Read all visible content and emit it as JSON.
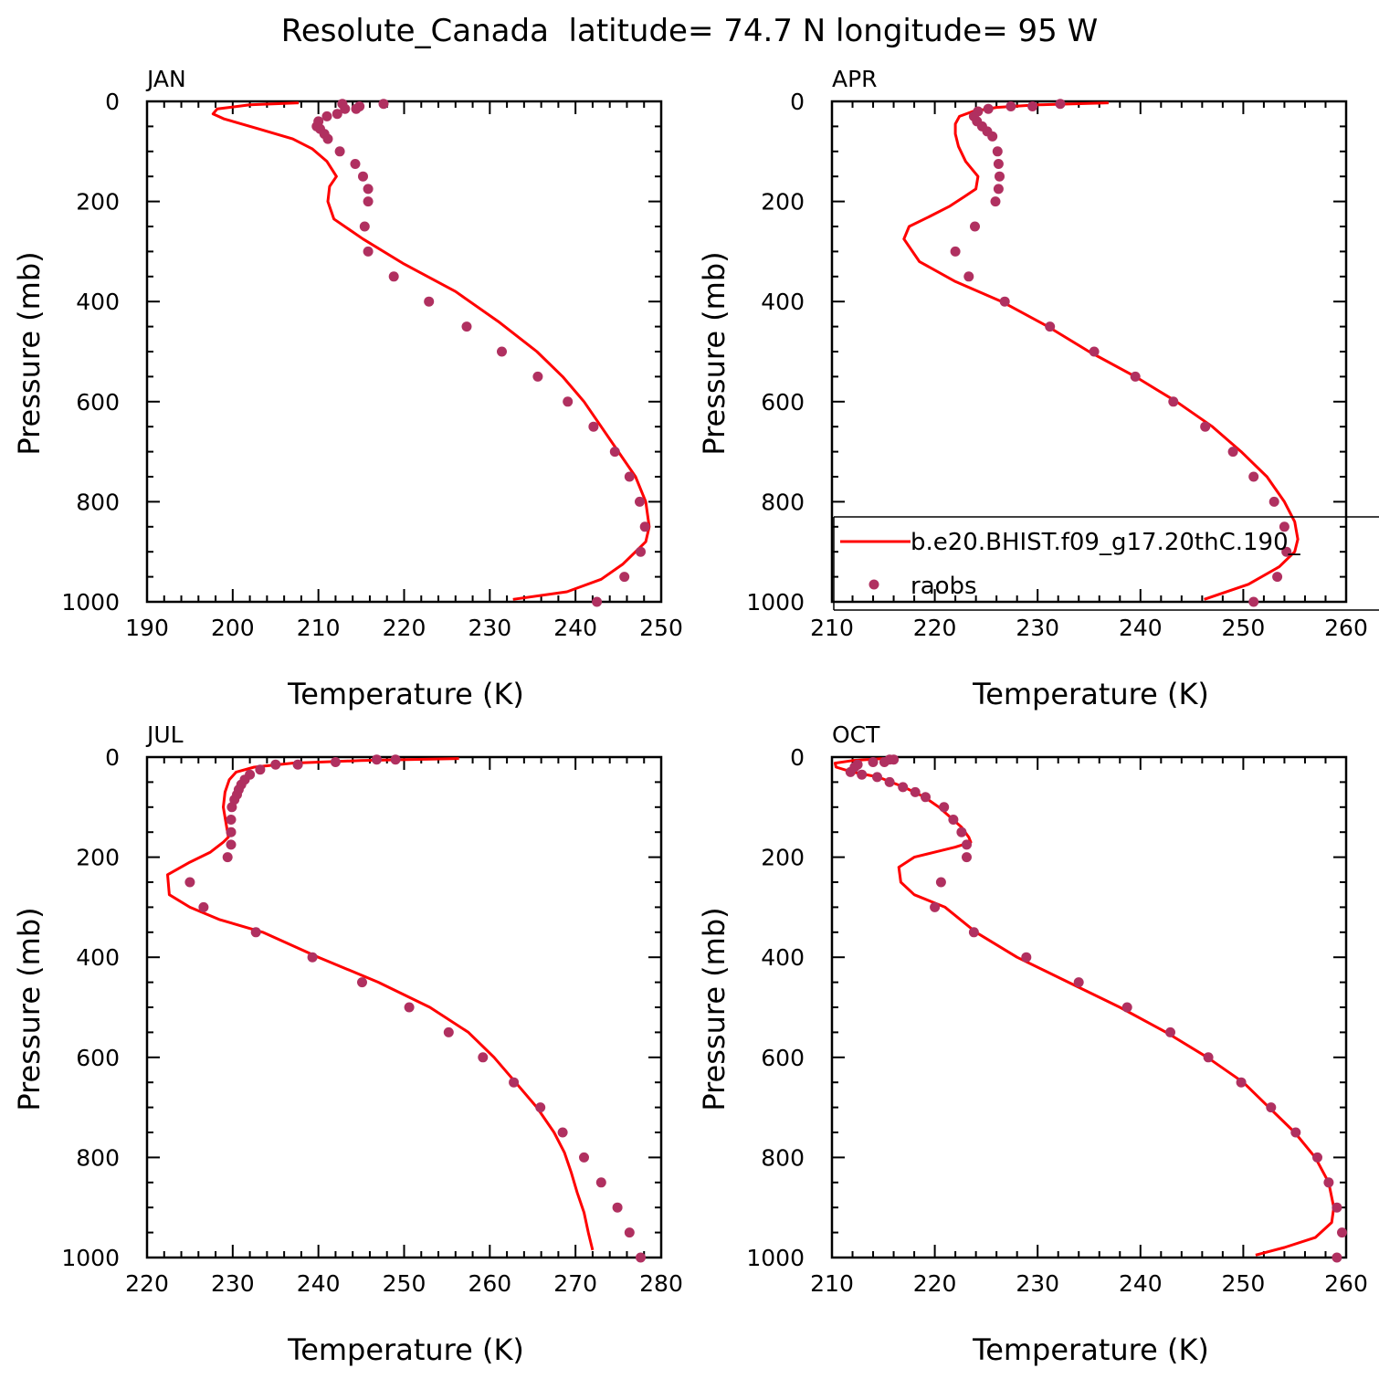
{
  "figure": {
    "title": "Resolute_Canada  latitude= 74.7 N longitude= 95 W"
  },
  "legend": {
    "entries": [
      {
        "name": "b.e20.BHIST.f09_g17.20thC.190_",
        "style": "line",
        "color": "#ff0000"
      },
      {
        "name": "raobs",
        "style": "marker",
        "color": "#b03060"
      }
    ]
  },
  "chart_data": [
    {
      "type": "line",
      "panel_label": "JAN",
      "xlabel": "Temperature (K)",
      "ylabel": "Pressure (mb)",
      "xlim": [
        190,
        250
      ],
      "ylim": [
        1000,
        0
      ],
      "y_inverted": true,
      "xticks": [
        190,
        200,
        210,
        220,
        230,
        240,
        250
      ],
      "yticks": [
        0,
        200,
        400,
        600,
        800,
        1000
      ],
      "series": [
        {
          "name": "b.e20.BHIST.f09_g17.20thC.190_",
          "kind": "line",
          "color": "#ff0000",
          "x": [
            207.7,
            202,
            198.2,
            197.7,
            199,
            203,
            207,
            209.3,
            211,
            212.1,
            211.3,
            211.1,
            211.8,
            215.2,
            220,
            226,
            231,
            235.5,
            238.5,
            241,
            243,
            245,
            247,
            248.2,
            248.6,
            248.2,
            247,
            245.5,
            243,
            239,
            232.7
          ],
          "y": [
            3,
            7,
            15,
            25,
            35,
            55,
            75,
            95,
            120,
            150,
            170,
            200,
            235,
            275,
            325,
            380,
            440,
            500,
            550,
            600,
            650,
            700,
            750,
            800,
            850,
            880,
            900,
            925,
            955,
            980,
            995
          ]
        },
        {
          "name": "raobs",
          "kind": "scatter",
          "color": "#b03060",
          "x": [
            217.6,
            214.8,
            212.8,
            214.4,
            213.1,
            212.2,
            211,
            210,
            209.8,
            210.2,
            210.7,
            211.1,
            212.5,
            214.3,
            215.2,
            215.8,
            215.8,
            215.4,
            215.8,
            218.8,
            222.9,
            227.3,
            231.4,
            235.6,
            239.1,
            242.1,
            244.6,
            246.3,
            247.5,
            248.1,
            247.6,
            245.7,
            242.5
          ],
          "y": [
            5,
            10,
            5,
            15,
            15,
            25,
            30,
            40,
            50,
            55,
            65,
            75,
            100,
            125,
            150,
            175,
            200,
            250,
            300,
            350,
            400,
            450,
            500,
            550,
            600,
            650,
            700,
            750,
            800,
            850,
            900,
            950,
            1000
          ]
        }
      ]
    },
    {
      "type": "line",
      "panel_label": "APR",
      "xlabel": "Temperature (K)",
      "ylabel": "Pressure (mb)",
      "xlim": [
        210,
        260
      ],
      "ylim": [
        1000,
        0
      ],
      "y_inverted": true,
      "xticks": [
        210,
        220,
        230,
        240,
        250,
        260
      ],
      "yticks": [
        0,
        200,
        400,
        600,
        800,
        1000
      ],
      "series": [
        {
          "name": "b.e20.BHIST.f09_g17.20thC.190_",
          "kind": "line",
          "color": "#ff0000",
          "x": [
            236.9,
            230,
            226,
            223.7,
            222.4,
            222,
            222,
            222.3,
            223,
            224.2,
            224,
            222.9,
            221.4,
            219.5,
            217.5,
            217,
            218.5,
            222,
            226.5,
            231,
            235,
            239.5,
            243.5,
            247,
            249.8,
            252.3,
            254,
            255,
            255.3,
            255,
            253.5,
            250.5,
            246.2
          ],
          "y": [
            3,
            7,
            12,
            20,
            30,
            45,
            65,
            90,
            120,
            150,
            175,
            190,
            210,
            230,
            250,
            275,
            320,
            360,
            400,
            450,
            500,
            550,
            600,
            650,
            700,
            750,
            800,
            840,
            875,
            900,
            930,
            965,
            995
          ]
        },
        {
          "name": "raobs",
          "kind": "scatter",
          "color": "#b03060",
          "x": [
            232.2,
            229.5,
            227.4,
            225.2,
            224.2,
            223.8,
            224.1,
            224.6,
            225.1,
            225.6,
            226.1,
            226.2,
            226.3,
            226.2,
            225.9,
            223.9,
            222,
            223.3,
            226.8,
            231.2,
            235.5,
            239.5,
            243.2,
            246.3,
            249,
            251,
            253,
            254,
            254.2,
            253.3,
            251
          ],
          "y": [
            5,
            10,
            10,
            15,
            20,
            30,
            40,
            50,
            60,
            70,
            100,
            125,
            150,
            175,
            200,
            250,
            300,
            350,
            400,
            450,
            500,
            550,
            600,
            650,
            700,
            750,
            800,
            850,
            900,
            950,
            1000
          ]
        }
      ]
    },
    {
      "type": "line",
      "panel_label": "JUL",
      "xlabel": "Temperature (K)",
      "ylabel": "Pressure (mb)",
      "xlim": [
        220,
        280
      ],
      "ylim": [
        1000,
        0
      ],
      "y_inverted": true,
      "xticks": [
        220,
        230,
        240,
        250,
        260,
        270,
        280
      ],
      "yticks": [
        0,
        200,
        400,
        600,
        800,
        1000
      ],
      "series": [
        {
          "name": "b.e20.BHIST.f09_g17.20thC.190_",
          "kind": "line",
          "color": "#ff0000",
          "x": [
            256.4,
            245,
            237,
            232.5,
            230.4,
            229.6,
            229.1,
            228.9,
            229.2,
            229.5,
            228.9,
            227.4,
            225,
            222.4,
            222.6,
            225,
            228.5,
            233.5,
            240,
            247,
            253,
            257.5,
            260.5,
            263,
            265.5,
            267.5,
            268.7,
            269.5,
            270.2,
            271,
            271.5,
            272
          ],
          "y": [
            3,
            7,
            12,
            20,
            30,
            45,
            70,
            100,
            130,
            160,
            170,
            190,
            210,
            235,
            275,
            300,
            325,
            350,
            400,
            450,
            500,
            550,
            600,
            650,
            700,
            750,
            790,
            830,
            870,
            910,
            950,
            985
          ]
        },
        {
          "name": "raobs",
          "kind": "scatter",
          "color": "#b03060",
          "x": [
            249,
            246.8,
            242,
            237.6,
            235,
            233.2,
            232,
            231.4,
            231,
            230.7,
            230.5,
            230.2,
            229.9,
            229.8,
            229.8,
            229.8,
            229.4,
            225,
            226.6,
            232.7,
            239.3,
            245.1,
            250.6,
            255.2,
            259.2,
            262.8,
            265.9,
            268.5,
            271,
            273,
            274.9,
            276.3,
            277.6
          ],
          "y": [
            5,
            5,
            10,
            15,
            15,
            25,
            35,
            45,
            55,
            65,
            75,
            85,
            100,
            125,
            150,
            175,
            200,
            250,
            300,
            350,
            400,
            450,
            500,
            550,
            600,
            650,
            700,
            750,
            800,
            850,
            900,
            950,
            1000
          ]
        }
      ]
    },
    {
      "type": "line",
      "panel_label": "OCT",
      "xlabel": "Temperature (K)",
      "ylabel": "Pressure (mb)",
      "xlim": [
        210,
        260
      ],
      "ylim": [
        1000,
        0
      ],
      "y_inverted": true,
      "xticks": [
        210,
        220,
        230,
        240,
        250,
        260
      ],
      "yticks": [
        0,
        200,
        400,
        600,
        800,
        1000
      ],
      "series": [
        {
          "name": "b.e20.BHIST.f09_g17.20thC.190_",
          "kind": "line",
          "color": "#ff0000",
          "x": [
            215,
            212,
            210.3,
            210.4,
            212,
            214.5,
            217,
            219,
            220.4,
            221.5,
            222.6,
            223.3,
            223.5,
            222,
            220,
            218,
            216.5,
            216.7,
            218,
            221,
            224,
            228,
            233,
            238,
            242.5,
            246.5,
            250,
            252.5,
            255,
            257,
            258.3,
            258.8,
            258.6,
            257,
            254,
            251.2
          ],
          "y": [
            3,
            7,
            12,
            20,
            30,
            40,
            60,
            80,
            100,
            120,
            140,
            160,
            170,
            180,
            190,
            200,
            220,
            250,
            275,
            300,
            350,
            400,
            450,
            500,
            550,
            600,
            650,
            700,
            750,
            800,
            850,
            900,
            930,
            960,
            980,
            995
          ]
        },
        {
          "name": "raobs",
          "kind": "scatter",
          "color": "#b03060",
          "x": [
            216,
            215.6,
            215.1,
            214,
            212.5,
            212.2,
            211.8,
            212.9,
            214.4,
            215.6,
            216.9,
            218.1,
            219.1,
            220.9,
            221.8,
            222.6,
            223.1,
            223.1,
            220.6,
            220,
            223.8,
            228.9,
            234,
            238.7,
            242.9,
            246.6,
            249.8,
            252.7,
            255.1,
            257.2,
            258.3,
            259.1,
            259.6,
            259.1
          ],
          "y": [
            5,
            5,
            10,
            10,
            15,
            20,
            30,
            35,
            40,
            50,
            60,
            70,
            80,
            100,
            125,
            150,
            175,
            200,
            250,
            300,
            350,
            400,
            450,
            500,
            550,
            600,
            650,
            700,
            750,
            800,
            850,
            900,
            950,
            1000
          ]
        }
      ]
    }
  ]
}
